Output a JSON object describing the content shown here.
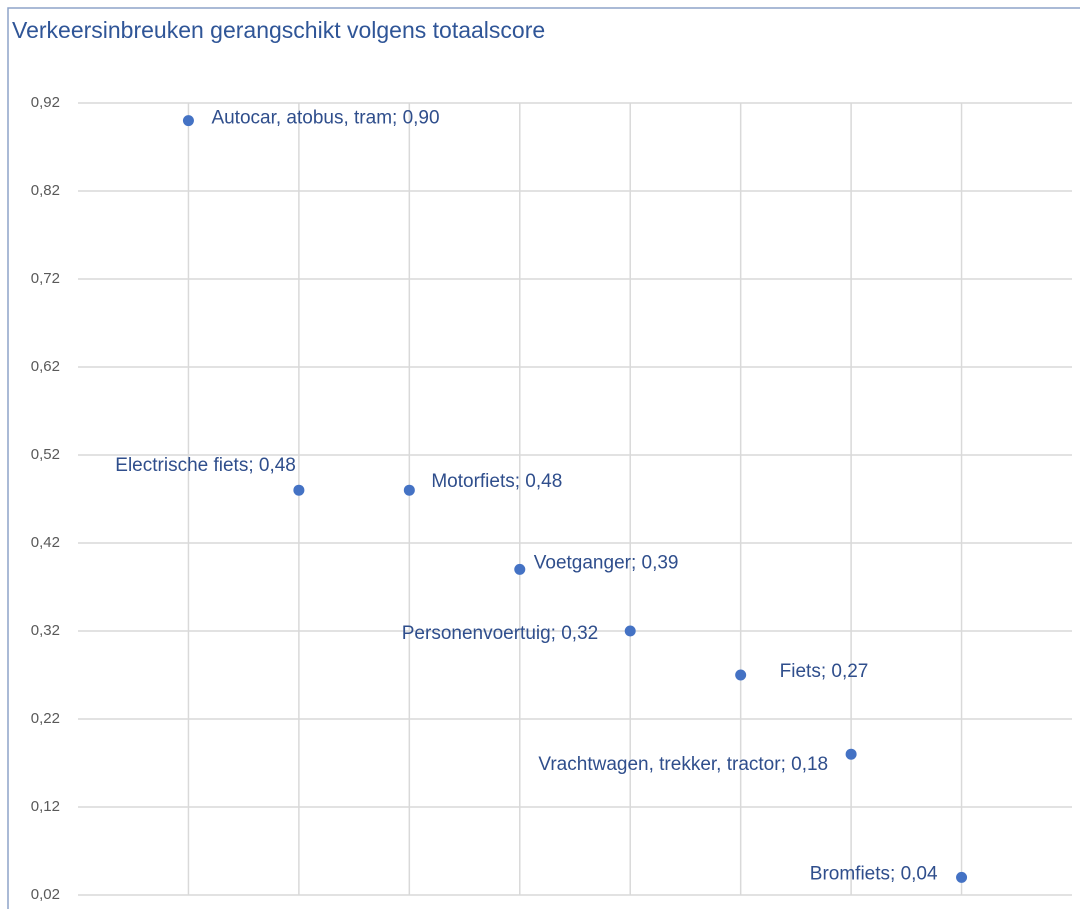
{
  "chart_data": {
    "type": "scatter",
    "title": "Verkeersinbreuken gerangschikt volgens totaalscore",
    "values": [
      0.9,
      0.48,
      0.48,
      0.39,
      0.32,
      0.27,
      0.18,
      0.04
    ],
    "value_labels": [
      "Autocar, atobus, tram; 0,90",
      "Electrische fiets; 0,48",
      "Motorfiets; 0,48",
      "Voetganger; 0,39",
      "Personenvoertuig; 0,32",
      "Fiets; 0,27",
      "Vrachtwagen, trekker, tractor; 0,18",
      "Bromfiets; 0,04"
    ],
    "color": "#4472c4",
    "ylim": [
      0.02,
      0.92
    ],
    "yticks": [
      {
        "value": 0.02,
        "label": "0,02"
      },
      {
        "value": 0.12,
        "label": "0,12"
      },
      {
        "value": 0.22,
        "label": "0,22"
      },
      {
        "value": 0.32,
        "label": "0,32"
      },
      {
        "value": 0.42,
        "label": "0,42"
      },
      {
        "value": 0.52,
        "label": "0,52"
      },
      {
        "value": 0.62,
        "label": "0,62"
      },
      {
        "value": 0.72,
        "label": "0,72"
      },
      {
        "value": 0.82,
        "label": "0,82"
      },
      {
        "value": 0.92,
        "label": "0,92"
      }
    ],
    "grid": true
  }
}
